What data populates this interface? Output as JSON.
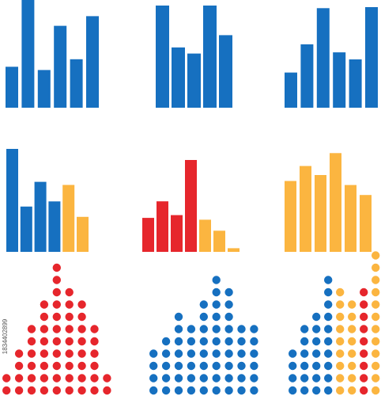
{
  "stock_id": "1834402899",
  "colors": {
    "blue": "#1670c0",
    "red": "#e6262c",
    "orange": "#fbb540"
  },
  "chart_data": [
    {
      "type": "bar",
      "series": [
        {
          "values": [
            38,
            100,
            35,
            76,
            45,
            85
          ],
          "colors": [
            "blue",
            "blue",
            "blue",
            "blue",
            "blue",
            "blue"
          ]
        }
      ]
    },
    {
      "type": "bar",
      "series": [
        {
          "values": [
            100,
            59,
            53,
            100,
            71
          ],
          "colors": [
            "blue",
            "blue",
            "blue",
            "blue",
            "blue"
          ]
        }
      ]
    },
    {
      "type": "bar",
      "series": [
        {
          "values": [
            35,
            63,
            99,
            55,
            48,
            100
          ],
          "colors": [
            "blue",
            "blue",
            "blue",
            "blue",
            "blue",
            "blue"
          ]
        }
      ]
    },
    {
      "type": "bar",
      "series": [
        {
          "values": [
            100,
            44,
            68,
            49,
            65,
            34
          ],
          "colors": [
            "blue",
            "blue",
            "blue",
            "blue",
            "orange",
            "orange"
          ]
        }
      ]
    },
    {
      "type": "bar",
      "series": [
        {
          "values": [
            37,
            55,
            40,
            100,
            35,
            23,
            4
          ],
          "colors": [
            "red",
            "red",
            "red",
            "red",
            "orange",
            "orange",
            "orange"
          ]
        }
      ]
    },
    {
      "type": "bar",
      "series": [
        {
          "values": [
            71,
            86,
            77,
            99,
            67,
            57
          ],
          "colors": [
            "orange",
            "orange",
            "orange",
            "orange",
            "orange",
            "orange"
          ]
        }
      ]
    },
    {
      "type": "dot-matrix",
      "series": [
        {
          "values": [
            2,
            4,
            6,
            8,
            11,
            9,
            8,
            6,
            2
          ],
          "colors": [
            "red"
          ]
        }
      ]
    },
    {
      "type": "dot-matrix",
      "series": [
        {
          "values": [
            4,
            5,
            7,
            6,
            8,
            10,
            9,
            6,
            6
          ],
          "colors": [
            "blue"
          ]
        }
      ]
    },
    {
      "type": "dot-matrix",
      "series": [
        {
          "values": [
            4,
            6,
            7,
            10,
            9,
            8,
            9,
            12,
            9
          ],
          "colors": [
            "blue",
            "blue",
            "blue",
            "blue",
            "orange",
            "orange",
            "red",
            "orange",
            "blue"
          ]
        }
      ]
    }
  ]
}
